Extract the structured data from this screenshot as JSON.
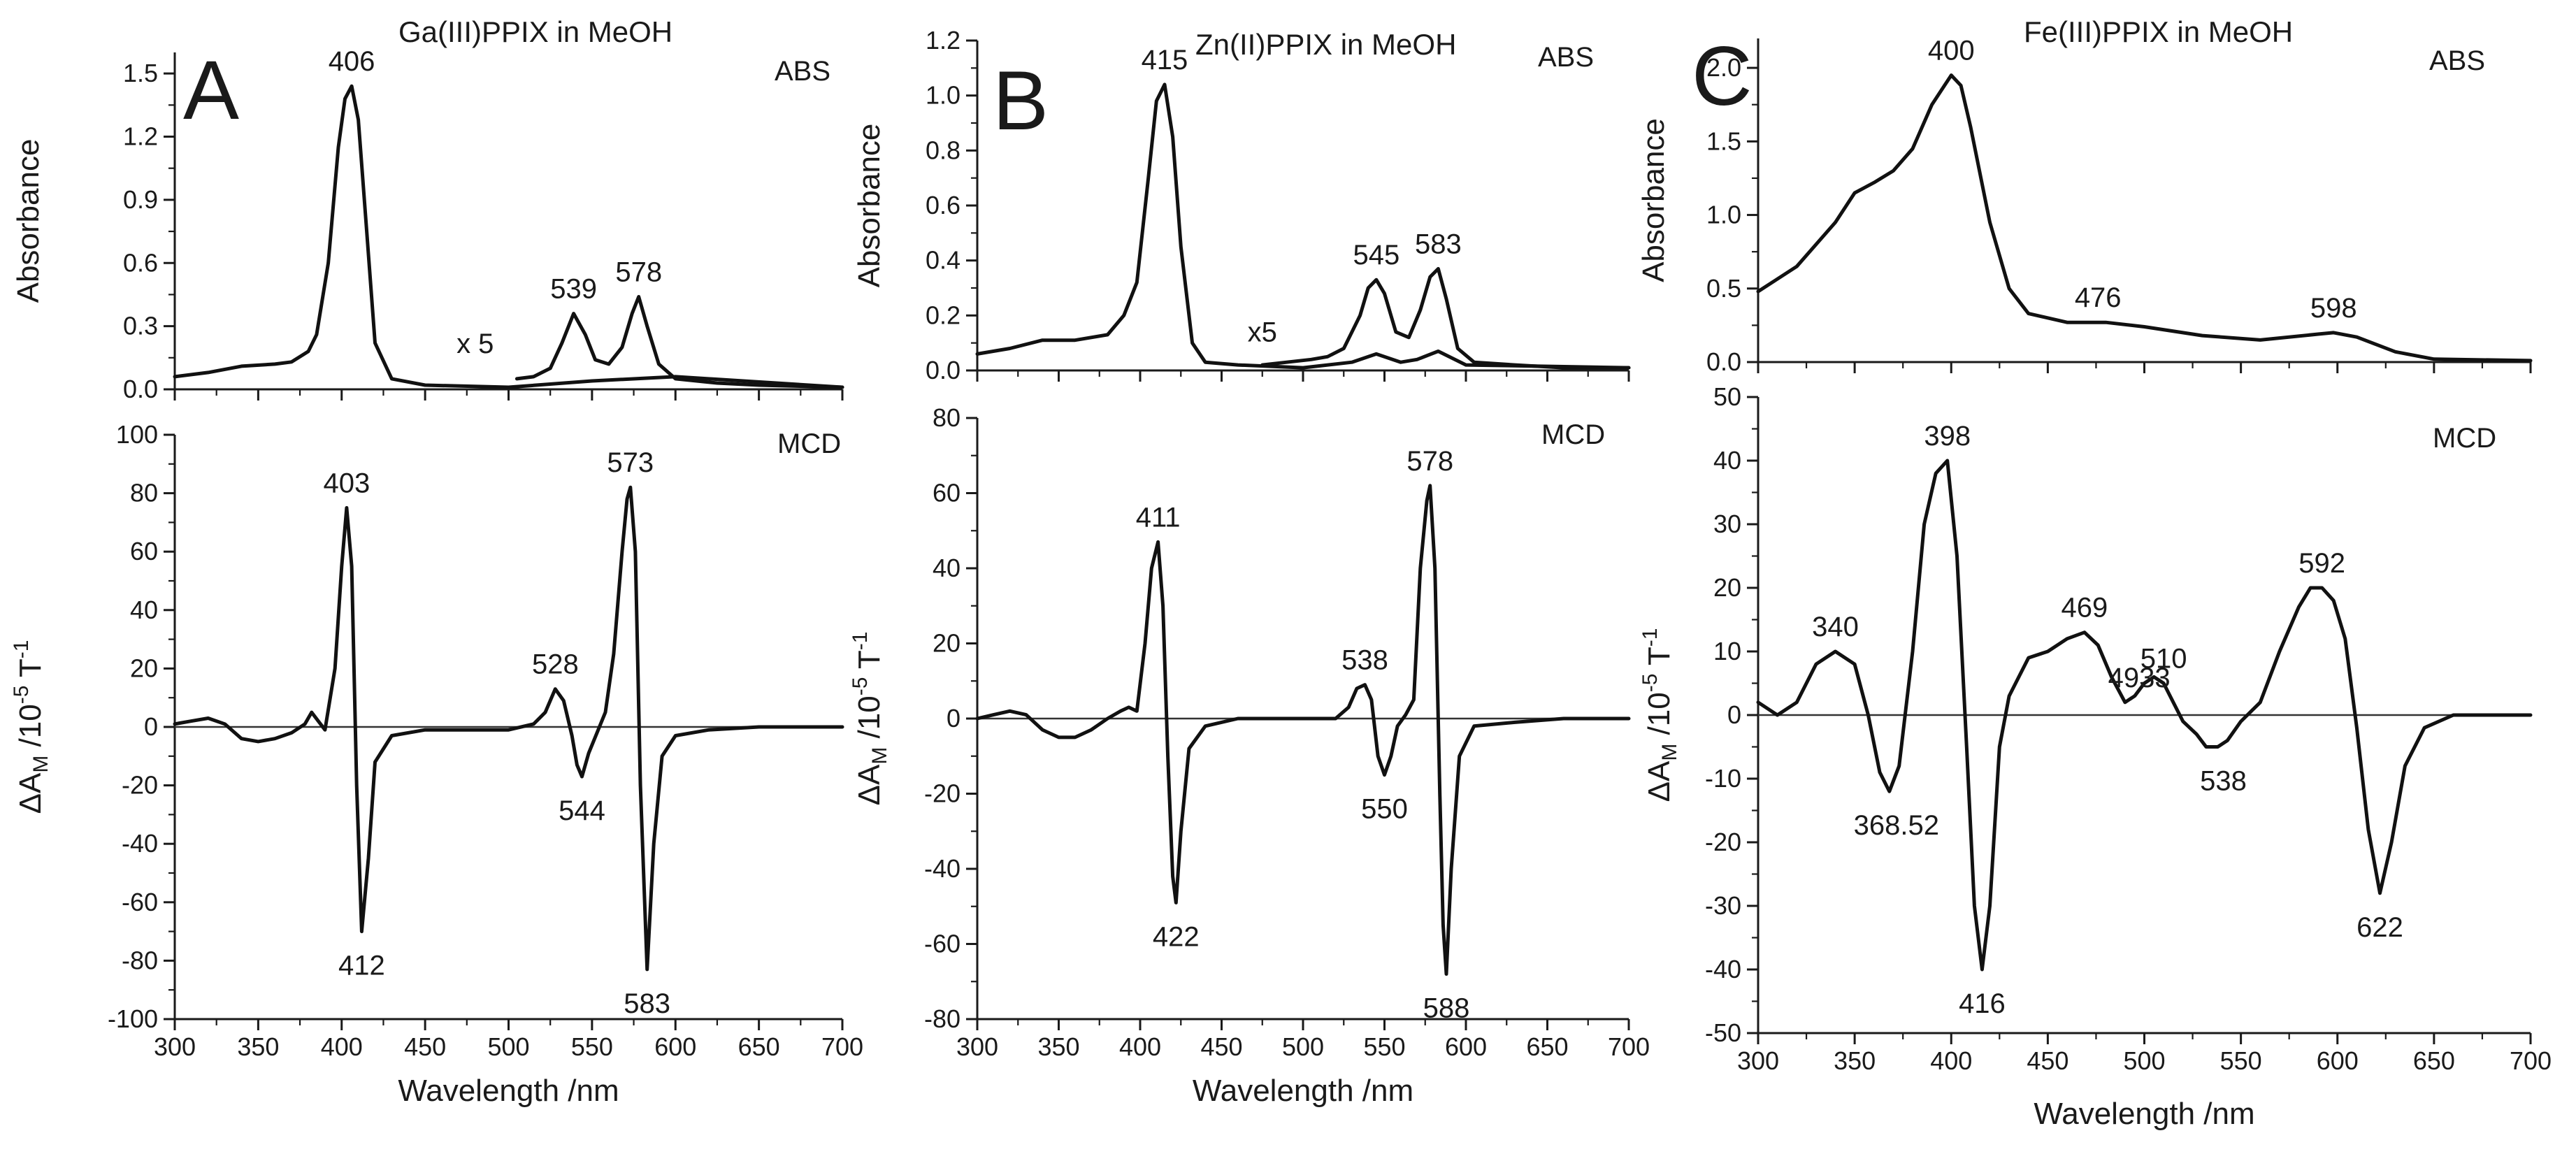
{
  "chart_data": [
    {
      "panel": "A",
      "type": "line",
      "title": "Ga(III)PPIX in MeOH",
      "xlabel": "Wavelength /nm",
      "xlim": [
        300,
        700
      ],
      "xticks": [
        "300",
        "350",
        "400",
        "450",
        "500",
        "550",
        "600",
        "650",
        "700"
      ],
      "abs": {
        "tag": "ABS",
        "ylabel": "Absorbance",
        "ylim": [
          0,
          1.6
        ],
        "yticks": [
          "0.0",
          "0.3",
          "0.6",
          "0.9",
          "1.2",
          "1.5"
        ],
        "series": [
          {
            "name": "ABS",
            "x": [
              300,
              320,
              340,
              360,
              370,
              380,
              385,
              392,
              398,
              402,
              406,
              410,
              415,
              420,
              430,
              450,
              500,
              550,
              600,
              700
            ],
            "y": [
              0.06,
              0.08,
              0.11,
              0.12,
              0.13,
              0.18,
              0.26,
              0.6,
              1.15,
              1.38,
              1.44,
              1.28,
              0.75,
              0.22,
              0.05,
              0.02,
              0.01,
              0.04,
              0.06,
              0.01
            ]
          },
          {
            "name": "ABS x5",
            "x": [
              505,
              515,
              525,
              532,
              539,
              546,
              552,
              560,
              568,
              574,
              578,
              583,
              590,
              600,
              625,
              650,
              700
            ],
            "y": [
              0.05,
              0.06,
              0.1,
              0.22,
              0.36,
              0.26,
              0.14,
              0.12,
              0.2,
              0.36,
              0.44,
              0.3,
              0.12,
              0.05,
              0.03,
              0.02,
              0.01
            ]
          }
        ],
        "annotations": [
          {
            "text": "406",
            "x": 406,
            "y": 1.44
          },
          {
            "text": "539",
            "x": 539,
            "y": 0.36
          },
          {
            "text": "578",
            "x": 578,
            "y": 0.44
          },
          {
            "text": "x 5",
            "x": 480,
            "y": 0.14
          }
        ]
      },
      "mcd": {
        "tag": "MCD",
        "ylabel": "ΔA_M /10^-5 T^-1",
        "ylim": [
          -100,
          100
        ],
        "yticks": [
          "-100",
          "-80",
          "-60",
          "-40",
          "-20",
          "0",
          "20",
          "40",
          "60",
          "80",
          "100"
        ],
        "series": [
          {
            "name": "MCD",
            "x": [
              300,
              310,
              320,
              330,
              340,
              350,
              360,
              370,
              378,
              382,
              386,
              390,
              396,
              400,
              403,
              406,
              409,
              412,
              416,
              420,
              430,
              450,
              500,
              515,
              522,
              528,
              533,
              538,
              541,
              544,
              548,
              553,
              558,
              563,
              568,
              571,
              573,
              576,
              579,
              583,
              587,
              592,
              600,
              620,
              650,
              700
            ],
            "y": [
              1,
              2,
              3,
              1,
              -4,
              -5,
              -4,
              -2,
              1,
              5,
              2,
              -1,
              20,
              55,
              75,
              55,
              -20,
              -70,
              -45,
              -12,
              -3,
              -1,
              -1,
              1,
              5,
              13,
              9,
              -3,
              -13,
              -17,
              -9,
              -2,
              5,
              25,
              60,
              78,
              82,
              60,
              -20,
              -83,
              -40,
              -10,
              -3,
              -1,
              0,
              0
            ]
          }
        ],
        "annotations": [
          {
            "text": "403",
            "x": 403,
            "y": 75
          },
          {
            "text": "412",
            "x": 412,
            "y": -70
          },
          {
            "text": "528",
            "x": 528,
            "y": 13
          },
          {
            "text": "544",
            "x": 544,
            "y": -17
          },
          {
            "text": "573",
            "x": 573,
            "y": 82
          },
          {
            "text": "583",
            "x": 583,
            "y": -83
          }
        ]
      }
    },
    {
      "panel": "B",
      "type": "line",
      "title": "Zn(II)PPIX in MeOH",
      "xlabel": "Wavelength /nm",
      "xlim": [
        300,
        700
      ],
      "xticks": [
        "300",
        "350",
        "400",
        "450",
        "500",
        "550",
        "600",
        "650",
        "700"
      ],
      "abs": {
        "tag": "ABS",
        "ylabel": "Absorbance",
        "ylim": [
          0,
          1.2
        ],
        "yticks": [
          "0.0",
          "0.2",
          "0.4",
          "0.6",
          "0.8",
          "1.0",
          "1.2"
        ],
        "series": [
          {
            "name": "ABS",
            "x": [
              300,
              320,
              340,
              360,
              380,
              390,
              398,
              405,
              410,
              415,
              420,
              425,
              432,
              440,
              460,
              500,
              530,
              545,
              560,
              570,
              583,
              600,
              700
            ],
            "y": [
              0.06,
              0.08,
              0.11,
              0.11,
              0.13,
              0.2,
              0.32,
              0.7,
              0.98,
              1.04,
              0.85,
              0.45,
              0.1,
              0.03,
              0.02,
              0.01,
              0.03,
              0.06,
              0.03,
              0.04,
              0.07,
              0.02,
              0.01
            ]
          },
          {
            "name": "ABS x5",
            "x": [
              475,
              490,
              505,
              515,
              525,
              535,
              540,
              545,
              550,
              557,
              565,
              572,
              578,
              583,
              588,
              595,
              605,
              630,
              660,
              700
            ],
            "y": [
              0.02,
              0.03,
              0.04,
              0.05,
              0.08,
              0.2,
              0.3,
              0.33,
              0.28,
              0.14,
              0.12,
              0.22,
              0.34,
              0.37,
              0.26,
              0.08,
              0.03,
              0.02,
              0.01,
              0.01
            ]
          }
        ],
        "annotations": [
          {
            "text": "415",
            "x": 415,
            "y": 1.04
          },
          {
            "text": "545",
            "x": 545,
            "y": 0.33
          },
          {
            "text": "583",
            "x": 583,
            "y": 0.37
          },
          {
            "text": "x5",
            "x": 475,
            "y": 0.08
          }
        ]
      },
      "mcd": {
        "tag": "MCD",
        "ylabel": "ΔA_M /10^-5 T^-1",
        "ylim": [
          -80,
          80
        ],
        "yticks": [
          "-80",
          "-60",
          "-40",
          "-20",
          "0",
          "20",
          "40",
          "60",
          "80"
        ],
        "series": [
          {
            "name": "MCD",
            "x": [
              300,
              310,
              320,
              330,
              340,
              350,
              360,
              370,
              380,
              388,
              393,
              398,
              403,
              407,
              411,
              414,
              417,
              420,
              422,
              425,
              430,
              440,
              460,
              500,
              520,
              528,
              533,
              538,
              542,
              546,
              550,
              554,
              558,
              563,
              568,
              572,
              576,
              578,
              581,
              584,
              586,
              588,
              591,
              596,
              605,
              630,
              660,
              700
            ],
            "y": [
              0,
              1,
              2,
              1,
              -3,
              -5,
              -5,
              -3,
              0,
              2,
              3,
              2,
              20,
              40,
              47,
              30,
              -10,
              -42,
              -49,
              -30,
              -8,
              -2,
              0,
              0,
              0,
              3,
              8,
              9,
              5,
              -10,
              -15,
              -10,
              -2,
              1,
              5,
              40,
              58,
              62,
              40,
              -20,
              -55,
              -68,
              -40,
              -10,
              -2,
              -1,
              0,
              0
            ]
          }
        ],
        "annotations": [
          {
            "text": "411",
            "x": 411,
            "y": 47
          },
          {
            "text": "422",
            "x": 422,
            "y": -49
          },
          {
            "text": "538",
            "x": 538,
            "y": 9
          },
          {
            "text": "550",
            "x": 550,
            "y": -15
          },
          {
            "text": "578",
            "x": 578,
            "y": 62
          },
          {
            "text": "588",
            "x": 588,
            "y": -68
          }
        ]
      }
    },
    {
      "panel": "C",
      "type": "line",
      "title": "Fe(III)PPIX in MeOH",
      "xlabel": "Wavelength /nm",
      "xlim": [
        300,
        700
      ],
      "xticks": [
        "300",
        "350",
        "400",
        "450",
        "500",
        "550",
        "600",
        "650",
        "700"
      ],
      "abs": {
        "tag": "ABS",
        "ylabel": "Absorbance",
        "ylim": [
          0,
          2.2
        ],
        "yticks": [
          "0.0",
          "0.5",
          "1.0",
          "1.5",
          "2.0"
        ],
        "series": [
          {
            "name": "ABS",
            "x": [
              300,
              320,
              340,
              350,
              360,
              370,
              380,
              390,
              400,
              405,
              410,
              420,
              430,
              440,
              460,
              480,
              500,
              530,
              560,
              590,
              598,
              610,
              630,
              650,
              700
            ],
            "y": [
              0.48,
              0.65,
              0.95,
              1.15,
              1.22,
              1.3,
              1.45,
              1.75,
              1.95,
              1.88,
              1.6,
              0.95,
              0.5,
              0.33,
              0.27,
              0.27,
              0.24,
              0.18,
              0.15,
              0.19,
              0.2,
              0.17,
              0.07,
              0.02,
              0.01
            ]
          }
        ],
        "annotations": [
          {
            "text": "400",
            "x": 400,
            "y": 1.95
          },
          {
            "text": "476",
            "x": 476,
            "y": 0.27
          },
          {
            "text": "598",
            "x": 598,
            "y": 0.2
          }
        ]
      },
      "mcd": {
        "tag": "MCD",
        "ylabel": "ΔA_M /10^-5 T^-1",
        "ylim": [
          -50,
          50
        ],
        "yticks": [
          "-50",
          "-40",
          "-30",
          "-20",
          "-10",
          "0",
          "10",
          "20",
          "30",
          "40",
          "50"
        ],
        "series": [
          {
            "name": "MCD",
            "x": [
              300,
              310,
              320,
              330,
              340,
              350,
              357,
              363,
              368,
              373,
              380,
              386,
              392,
              398,
              403,
              408,
              412,
              416,
              420,
              425,
              430,
              440,
              450,
              460,
              469,
              476,
              483,
              490,
              495,
              500,
              505,
              510,
              515,
              520,
              527,
              532,
              538,
              543,
              550,
              560,
              570,
              580,
              586,
              592,
              598,
              604,
              610,
              616,
              622,
              628,
              635,
              645,
              660,
              680,
              700
            ],
            "y": [
              2,
              0,
              2,
              8,
              10,
              8,
              0,
              -9,
              -12,
              -8,
              10,
              30,
              38,
              40,
              25,
              -5,
              -30,
              -40,
              -30,
              -5,
              3,
              9,
              10,
              12,
              13,
              11,
              6,
              2,
              3,
              5,
              6,
              5,
              2,
              -1,
              -3,
              -5,
              -5,
              -4,
              -1,
              2,
              10,
              17,
              20,
              20,
              18,
              12,
              -2,
              -18,
              -28,
              -20,
              -8,
              -2,
              0,
              0,
              0
            ]
          }
        ],
        "annotations": [
          {
            "text": "340",
            "x": 340,
            "y": 10
          },
          {
            "text": "368.52",
            "x": 368,
            "y": -12
          },
          {
            "text": "398",
            "x": 398,
            "y": 40
          },
          {
            "text": "416",
            "x": 416,
            "y": -40
          },
          {
            "text": "469",
            "x": 469,
            "y": 13
          },
          {
            "text": "4933",
            "x": 493,
            "y": 2
          },
          {
            "text": "510",
            "x": 510,
            "y": 5
          },
          {
            "text": "538",
            "x": 538,
            "y": -5
          },
          {
            "text": "592",
            "x": 592,
            "y": 20
          },
          {
            "text": "622",
            "x": 622,
            "y": -28
          }
        ]
      }
    }
  ]
}
